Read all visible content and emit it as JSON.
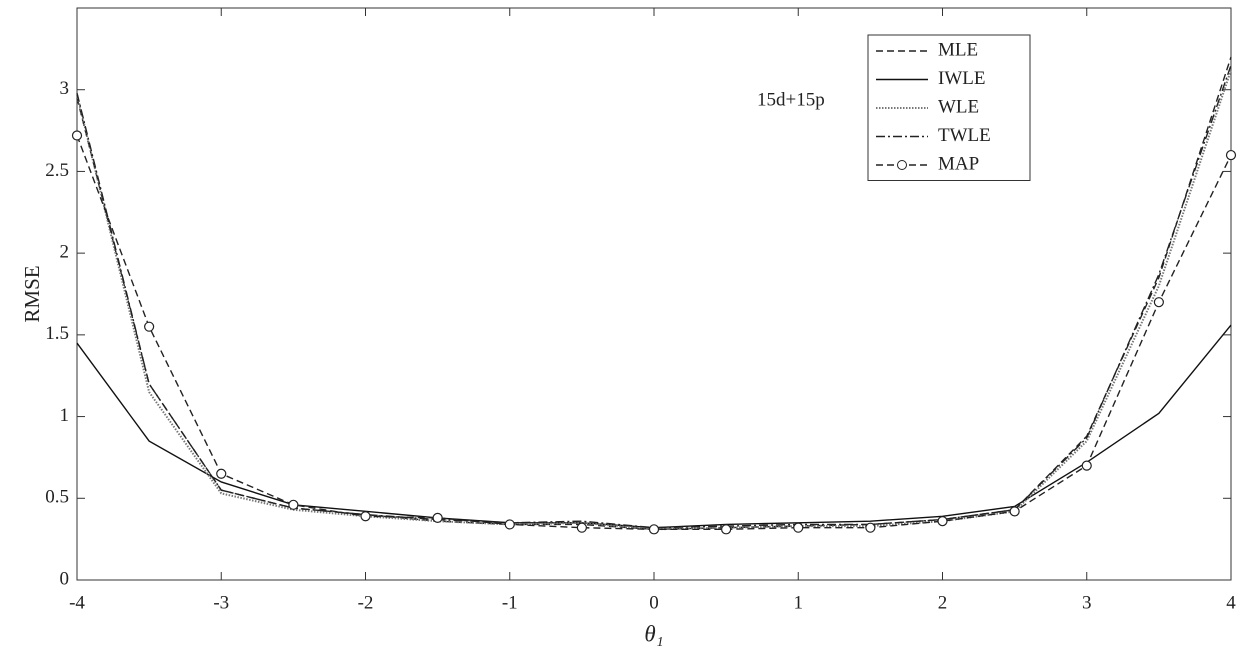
{
  "chart_data": {
    "type": "line",
    "xlabel": "θ₁",
    "ylabel": "RMSE",
    "annotation": "15d+15p",
    "x": [
      -4,
      -3.5,
      -3,
      -2.5,
      -2,
      -1.5,
      -1,
      -0.5,
      0,
      0.5,
      1,
      1.5,
      2,
      2.5,
      3,
      3.5,
      4
    ],
    "series": [
      {
        "name": "MLE",
        "color": "#222222",
        "dash": "dashed",
        "values": [
          2.95,
          1.2,
          0.55,
          0.44,
          0.4,
          0.36,
          0.34,
          0.34,
          0.31,
          0.32,
          0.33,
          0.34,
          0.37,
          0.43,
          0.88,
          1.85,
          3.2
        ]
      },
      {
        "name": "IWLE",
        "color": "#111111",
        "dash": "solid",
        "values": [
          1.45,
          0.85,
          0.6,
          0.46,
          0.42,
          0.38,
          0.35,
          0.35,
          0.32,
          0.34,
          0.35,
          0.36,
          0.39,
          0.45,
          0.72,
          1.02,
          1.56
        ]
      },
      {
        "name": "WLE",
        "color": "#777777",
        "dash": "dotted",
        "values": [
          2.97,
          1.15,
          0.53,
          0.43,
          0.39,
          0.36,
          0.34,
          0.35,
          0.31,
          0.32,
          0.33,
          0.33,
          0.36,
          0.42,
          0.85,
          1.8,
          3.12
        ]
      },
      {
        "name": "TWLE",
        "color": "#222222",
        "dash": "dashdot",
        "values": [
          2.98,
          1.2,
          0.55,
          0.44,
          0.4,
          0.37,
          0.35,
          0.36,
          0.32,
          0.33,
          0.34,
          0.34,
          0.37,
          0.43,
          0.87,
          1.87,
          3.15
        ]
      },
      {
        "name": "MAP",
        "color": "#222222",
        "dash": "dashed",
        "marker": "circle",
        "values": [
          2.72,
          1.55,
          0.65,
          0.46,
          0.39,
          0.38,
          0.34,
          0.32,
          0.31,
          0.31,
          0.32,
          0.32,
          0.36,
          0.42,
          0.7,
          1.7,
          2.6
        ]
      }
    ],
    "xlim": [
      -4,
      4
    ],
    "xticks": [
      -4,
      -3,
      -2,
      -1,
      0,
      1,
      2,
      3,
      4
    ],
    "ylim": [
      0,
      3.5
    ],
    "yticks": [
      0,
      0.5,
      1,
      1.5,
      2,
      2.5,
      3
    ],
    "legend": "upper right"
  }
}
